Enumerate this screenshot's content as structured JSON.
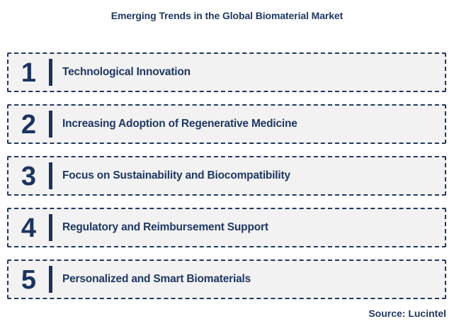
{
  "title": "Emerging Trends in the Global Biomaterial Market",
  "colors": {
    "navy": "#1F3864",
    "row_background": "#F2F2F2",
    "page_background": "#FFFFFF"
  },
  "trends": [
    {
      "number": "1",
      "label": "Technological Innovation"
    },
    {
      "number": "2",
      "label": "Increasing Adoption of Regenerative Medicine"
    },
    {
      "number": "3",
      "label": "Focus on Sustainability and Biocompatibility"
    },
    {
      "number": "4",
      "label": "Regulatory and Reimbursement Support"
    },
    {
      "number": "5",
      "label": "Personalized and Smart Biomaterials"
    }
  ],
  "source": "Source: Lucintel"
}
